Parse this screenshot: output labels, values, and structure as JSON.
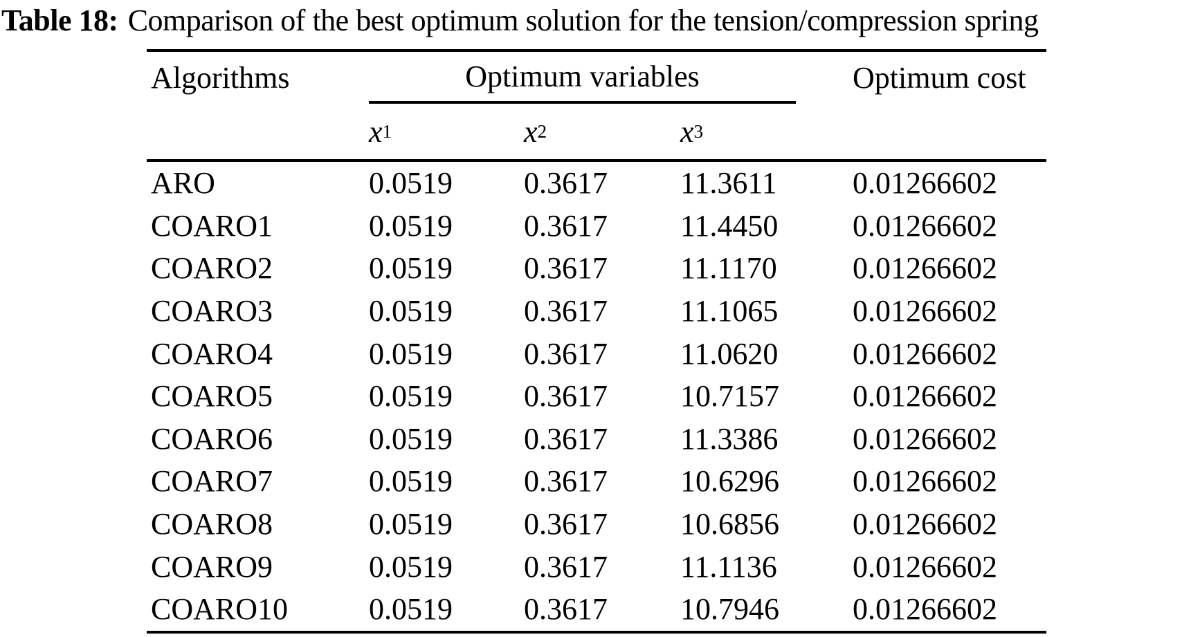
{
  "title": {
    "label": "Table 18:",
    "text": "Comparison of the best optimum solution for the tension/compression spring"
  },
  "table": {
    "columns": {
      "algorithms": "Algorithms",
      "group": "Optimum variables",
      "cost": "Optimum cost",
      "sub": [
        {
          "base": "x",
          "sub": "1"
        },
        {
          "base": "x",
          "sub": "2"
        },
        {
          "base": "x",
          "sub": "3"
        }
      ]
    },
    "rows": [
      {
        "algorithm": "ARO",
        "x1": "0.0519",
        "x2": "0.3617",
        "x3": "11.3611",
        "cost": "0.01266602"
      },
      {
        "algorithm": "COARO1",
        "x1": "0.0519",
        "x2": "0.3617",
        "x3": "11.4450",
        "cost": "0.01266602"
      },
      {
        "algorithm": "COARO2",
        "x1": "0.0519",
        "x2": "0.3617",
        "x3": "11.1170",
        "cost": "0.01266602"
      },
      {
        "algorithm": "COARO3",
        "x1": "0.0519",
        "x2": "0.3617",
        "x3": "11.1065",
        "cost": "0.01266602"
      },
      {
        "algorithm": "COARO4",
        "x1": "0.0519",
        "x2": "0.3617",
        "x3": "11.0620",
        "cost": "0.01266602"
      },
      {
        "algorithm": "COARO5",
        "x1": "0.0519",
        "x2": "0.3617",
        "x3": "10.7157",
        "cost": "0.01266602"
      },
      {
        "algorithm": "COARO6",
        "x1": "0.0519",
        "x2": "0.3617",
        "x3": "11.3386",
        "cost": "0.01266602"
      },
      {
        "algorithm": "COARO7",
        "x1": "0.0519",
        "x2": "0.3617",
        "x3": "10.6296",
        "cost": "0.01266602"
      },
      {
        "algorithm": "COARO8",
        "x1": "0.0519",
        "x2": "0.3617",
        "x3": "10.6856",
        "cost": "0.01266602"
      },
      {
        "algorithm": "COARO9",
        "x1": "0.0519",
        "x2": "0.3617",
        "x3": "11.1136",
        "cost": "0.01266602"
      },
      {
        "algorithm": "COARO10",
        "x1": "0.0519",
        "x2": "0.3617",
        "x3": "10.7946",
        "cost": "0.01266602"
      }
    ]
  },
  "chart_data": {
    "type": "table",
    "title": "Table 18: Comparison of the best optimum solution for the tension/compression spring",
    "columns": [
      "Algorithms",
      "x1",
      "x2",
      "x3",
      "Optimum cost"
    ],
    "column_groups": [
      {
        "label": "Optimum variables",
        "columns": [
          "x1",
          "x2",
          "x3"
        ]
      }
    ],
    "rows": [
      [
        "ARO",
        0.0519,
        0.3617,
        11.3611,
        0.01266602
      ],
      [
        "COARO1",
        0.0519,
        0.3617,
        11.445,
        0.01266602
      ],
      [
        "COARO2",
        0.0519,
        0.3617,
        11.117,
        0.01266602
      ],
      [
        "COARO3",
        0.0519,
        0.3617,
        11.1065,
        0.01266602
      ],
      [
        "COARO4",
        0.0519,
        0.3617,
        11.062,
        0.01266602
      ],
      [
        "COARO5",
        0.0519,
        0.3617,
        10.7157,
        0.01266602
      ],
      [
        "COARO6",
        0.0519,
        0.3617,
        11.3386,
        0.01266602
      ],
      [
        "COARO7",
        0.0519,
        0.3617,
        10.6296,
        0.01266602
      ],
      [
        "COARO8",
        0.0519,
        0.3617,
        10.6856,
        0.01266602
      ],
      [
        "COARO9",
        0.0519,
        0.3617,
        11.1136,
        0.01266602
      ],
      [
        "COARO10",
        0.0519,
        0.3617,
        10.7946,
        0.01266602
      ]
    ]
  },
  "colors": {
    "text": "#000000",
    "background": "#ffffff"
  }
}
